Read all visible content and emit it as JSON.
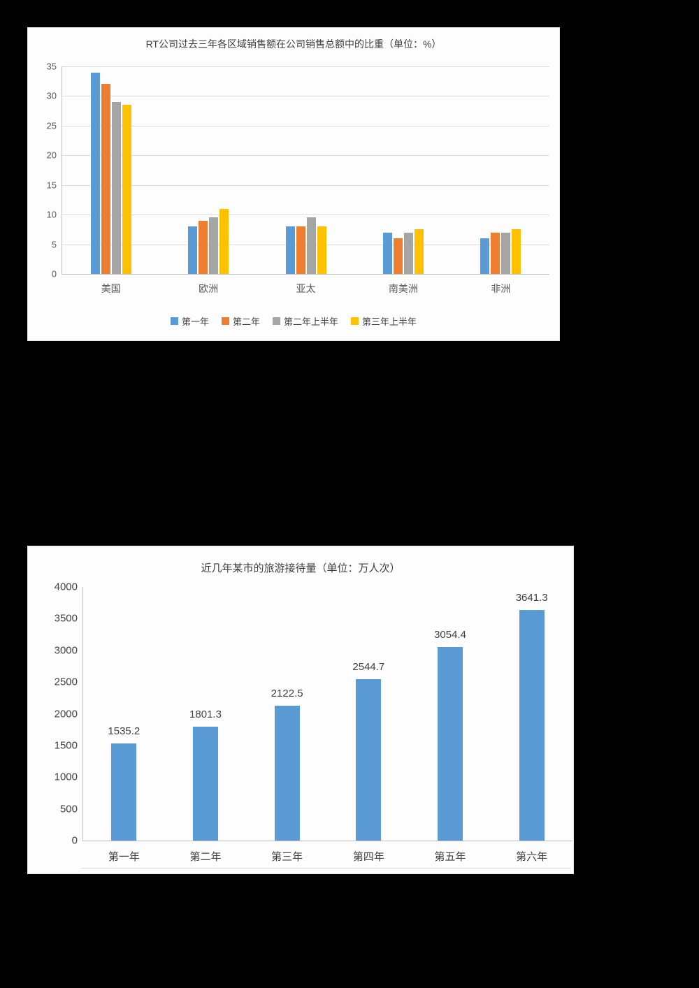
{
  "colors": {
    "page_background": "#000000",
    "panel_background": "#fdfdfd",
    "series_blue": "#5B9BD5",
    "series_orange": "#ED7D31",
    "series_gray": "#A5A5A5",
    "series_yellow": "#FFC000",
    "axis_text": "#595959",
    "title_text": "#3f3f3f"
  },
  "chart_data": [
    {
      "type": "bar",
      "title": "RT公司过去三年各区域销售额在公司销售总额中的比重（单位：%）",
      "categories": [
        "美国",
        "欧洲",
        "亚太",
        "南美洲",
        "非洲"
      ],
      "series": [
        {
          "name": "第一年",
          "color": "#5B9BD5",
          "values": [
            34,
            8,
            8,
            7,
            6
          ]
        },
        {
          "name": "第二年",
          "color": "#ED7D31",
          "values": [
            32,
            9,
            8,
            6,
            7
          ]
        },
        {
          "name": "第二年上半年",
          "color": "#A5A5A5",
          "values": [
            29,
            9.5,
            9.5,
            7,
            7
          ]
        },
        {
          "name": "第三年上半年",
          "color": "#FFC000",
          "values": [
            28.5,
            11,
            8,
            7.5,
            7.5
          ]
        }
      ],
      "xlabel": "",
      "ylabel": "",
      "ylim": [
        0,
        35
      ],
      "ytick_step": 5,
      "grid": true,
      "legend_position": "bottom"
    },
    {
      "type": "bar",
      "title": "近几年某市的旅游接待量（单位：万人次）",
      "categories": [
        "第一年",
        "第二年",
        "第三年",
        "第四年",
        "第五年",
        "第六年"
      ],
      "values": [
        1535.2,
        1801.3,
        2122.5,
        2544.7,
        3054.4,
        3641.3
      ],
      "data_labels": [
        "1535.2",
        "1801.3",
        "2122.5",
        "2544.7",
        "3054.4",
        "3641.3"
      ],
      "bar_color": "#5B9BD5",
      "xlabel": "",
      "ylabel": "",
      "ylim": [
        0,
        4000
      ],
      "ytick_step": 500,
      "grid": false,
      "legend_position": "none"
    }
  ]
}
